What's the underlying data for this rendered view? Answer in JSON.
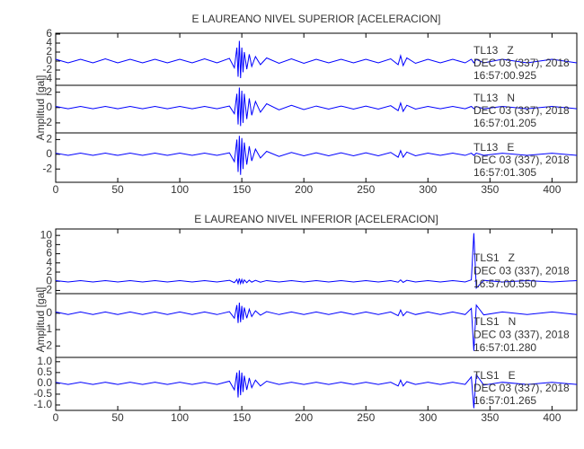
{
  "chart_data": [
    {
      "type": "line",
      "title": "E LAUREANO NIVEL SUPERIOR [ACELERACION]",
      "ylabel": "Amplitud [gal]",
      "xlim": [
        0,
        420
      ],
      "xticks": [
        0,
        50,
        100,
        150,
        200,
        250,
        300,
        350,
        400
      ],
      "x": [
        0,
        10,
        20,
        30,
        40,
        50,
        60,
        70,
        80,
        90,
        100,
        110,
        120,
        130,
        140,
        144,
        146,
        147,
        148,
        149,
        150,
        151,
        152,
        154,
        156,
        158,
        161,
        165,
        170,
        180,
        190,
        200,
        210,
        220,
        230,
        240,
        250,
        260,
        270,
        276,
        278,
        280,
        283,
        290,
        300,
        310,
        320,
        330,
        335,
        337,
        339,
        345,
        360,
        380,
        400,
        420
      ],
      "series": [
        {
          "name": "TL13   Z",
          "date": "DEC 03 (337), 2018",
          "time": "16:57:00.925",
          "color": "#0000ff",
          "ylim": [
            -5.4,
            6.2
          ],
          "yticks": [
            -4,
            -2,
            0,
            2,
            4,
            6
          ],
          "values": [
            0.4,
            -0.4,
            0.4,
            -0.4,
            0.5,
            -0.4,
            0.4,
            -0.4,
            0.4,
            -0.4,
            0.4,
            -0.4,
            0.5,
            -0.4,
            0.6,
            -1.5,
            3,
            -3.5,
            4.5,
            -3.8,
            3,
            -2.5,
            2,
            -1.8,
            1.5,
            -1.2,
            1,
            -0.8,
            0.7,
            -0.5,
            0.5,
            -0.5,
            0.4,
            -0.4,
            0.4,
            -0.4,
            0.4,
            -0.4,
            0.5,
            -0.8,
            1.2,
            -1,
            0.7,
            -0.5,
            0.4,
            -0.4,
            0.4,
            -0.4,
            0.4,
            -0.4,
            0.4,
            -0.4,
            0.4,
            -0.4,
            0.4,
            -0.4
          ]
        },
        {
          "name": "TL13   N",
          "date": "DEC 03 (337), 2018",
          "time": "16:57:01.205",
          "color": "#0000ff",
          "ylim": [
            -3.3,
            2.9
          ],
          "yticks": [
            -2,
            0,
            2
          ],
          "values": [
            0.15,
            -0.15,
            0.15,
            -0.15,
            0.15,
            -0.15,
            0.15,
            -0.15,
            0.15,
            -0.15,
            0.15,
            -0.15,
            0.15,
            -0.15,
            0.2,
            -0.8,
            1.8,
            -2.2,
            2.6,
            -2.4,
            2.2,
            -2,
            1.8,
            -1.5,
            1.2,
            -1,
            0.8,
            -0.6,
            0.5,
            -0.3,
            0.3,
            -0.25,
            0.2,
            -0.2,
            0.2,
            -0.2,
            0.2,
            -0.2,
            0.25,
            -0.4,
            0.6,
            -0.5,
            0.3,
            -0.2,
            0.15,
            -0.15,
            0.15,
            -0.15,
            0.15,
            -0.15,
            0.15,
            -0.15,
            0.15,
            -0.15,
            0.15,
            -0.15
          ]
        },
        {
          "name": "TL13   E",
          "date": "DEC 03 (337), 2018",
          "time": "16:57:01.305",
          "color": "#0000ff",
          "ylim": [
            -3.8,
            2.9
          ],
          "yticks": [
            -2,
            0,
            2
          ],
          "values": [
            0.15,
            -0.15,
            0.15,
            -0.15,
            0.15,
            -0.15,
            0.15,
            -0.15,
            0.15,
            -0.15,
            0.15,
            -0.15,
            0.15,
            -0.15,
            0.2,
            -1,
            2,
            -2.4,
            2.5,
            -2.8,
            2.2,
            -2,
            1.6,
            -1.4,
            1.1,
            -0.9,
            0.7,
            -0.5,
            0.4,
            -0.3,
            0.25,
            -0.2,
            0.2,
            -0.2,
            0.2,
            -0.2,
            0.2,
            -0.2,
            0.25,
            -0.4,
            0.5,
            -0.4,
            0.3,
            -0.2,
            0.15,
            -0.15,
            0.15,
            -0.15,
            0.15,
            -0.15,
            0.15,
            -0.15,
            0.15,
            -0.15,
            0.15,
            -0.15
          ]
        }
      ]
    },
    {
      "type": "line",
      "title": "E LAUREANO NIVEL INFERIOR [ACELERACION]",
      "ylabel": "Amplitud [gal]",
      "xlim": [
        0,
        420
      ],
      "xticks": [
        0,
        50,
        100,
        150,
        200,
        250,
        300,
        350,
        400
      ],
      "x": [
        0,
        10,
        20,
        30,
        40,
        50,
        60,
        70,
        80,
        90,
        100,
        110,
        120,
        130,
        140,
        144,
        146,
        147,
        148,
        149,
        150,
        151,
        152,
        154,
        156,
        158,
        161,
        165,
        170,
        180,
        190,
        200,
        210,
        220,
        230,
        240,
        250,
        260,
        270,
        276,
        278,
        280,
        283,
        290,
        300,
        310,
        320,
        330,
        335,
        337,
        339,
        345,
        360,
        380,
        400,
        420
      ],
      "series": [
        {
          "name": "TLS1   Z",
          "date": "DEC 03 (337), 2018",
          "time": "16:57:00.550",
          "color": "#0000ff",
          "ylim": [
            -2.7,
            11.4
          ],
          "yticks": [
            -2,
            0,
            2,
            4,
            6,
            8,
            10
          ],
          "values": [
            0.15,
            -0.15,
            0.15,
            -0.15,
            0.15,
            -0.15,
            0.15,
            -0.15,
            0.15,
            -0.15,
            0.15,
            -0.15,
            0.15,
            -0.15,
            0.2,
            -0.3,
            0.4,
            -0.5,
            0.6,
            -0.5,
            0.4,
            -0.4,
            0.3,
            -0.3,
            0.25,
            -0.2,
            0.2,
            -0.2,
            0.15,
            -0.15,
            0.15,
            -0.15,
            0.15,
            -0.15,
            0.15,
            -0.15,
            0.15,
            -0.15,
            0.15,
            -0.2,
            0.3,
            -0.25,
            0.2,
            -0.15,
            0.15,
            -0.15,
            0.15,
            -0.15,
            0.3,
            10.5,
            -1.5,
            0.2,
            -0.15,
            0.15,
            -0.15,
            0.15
          ]
        },
        {
          "name": "TLS1   N",
          "date": "DEC 03 (337), 2018",
          "time": "16:57:01.280",
          "color": "#0000ff",
          "ylim": [
            -2.7,
            1.2
          ],
          "yticks": [
            -2,
            -1,
            0
          ],
          "values": [
            0.08,
            -0.08,
            0.08,
            -0.08,
            0.08,
            -0.08,
            0.08,
            -0.08,
            0.08,
            -0.08,
            0.08,
            -0.08,
            0.08,
            -0.08,
            0.1,
            -0.3,
            0.5,
            -0.6,
            0.65,
            -0.55,
            0.45,
            -0.4,
            0.35,
            -0.3,
            0.25,
            -0.2,
            0.15,
            -0.12,
            0.1,
            -0.08,
            0.08,
            -0.08,
            0.08,
            -0.08,
            0.08,
            -0.08,
            0.08,
            -0.08,
            0.08,
            -0.15,
            0.2,
            -0.15,
            0.1,
            -0.08,
            0.08,
            -0.08,
            0.08,
            -0.08,
            0.3,
            -2.3,
            0.5,
            -0.1,
            0.08,
            -0.08,
            0.08,
            -0.08
          ]
        },
        {
          "name": "TLS1   E",
          "date": "DEC 03 (337), 2018",
          "time": "16:57:01.265",
          "color": "#0000ff",
          "ylim": [
            -1.25,
            1.2
          ],
          "yticks": [
            {
              "value": -1,
              "label": "-1.0"
            },
            -0.5,
            {
              "value": 0,
              "label": "0.0"
            },
            0.5,
            {
              "value": 1,
              "label": "1.0"
            }
          ],
          "values": [
            0.05,
            -0.05,
            0.05,
            -0.05,
            0.05,
            -0.05,
            0.05,
            -0.05,
            0.05,
            -0.05,
            0.05,
            -0.05,
            0.05,
            -0.05,
            0.1,
            -0.3,
            0.5,
            -0.65,
            0.6,
            -0.55,
            0.5,
            -0.4,
            0.35,
            -0.3,
            0.25,
            -0.2,
            0.15,
            -0.12,
            0.1,
            -0.05,
            0.05,
            -0.05,
            0.05,
            -0.05,
            0.05,
            -0.05,
            0.05,
            -0.05,
            0.05,
            -0.12,
            0.15,
            -0.12,
            0.08,
            -0.05,
            0.05,
            -0.05,
            0.05,
            -0.05,
            0.3,
            -1.15,
            0.4,
            -0.08,
            0.05,
            -0.05,
            0.05,
            -0.05
          ]
        }
      ]
    }
  ]
}
